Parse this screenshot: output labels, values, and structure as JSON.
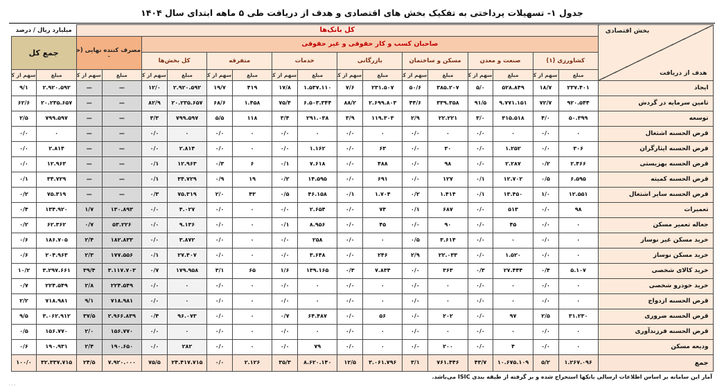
{
  "title": "جدول ۱-  تسهیلات پرداختی به تفکیک بخش های اقتصادی و هدف از دریافت طی ۵ ماهه ابتدای سال ۱۴۰۴",
  "unit_label": "میلیارد ریال / درصد",
  "header": {
    "all_banks": "کل بانک‌ها",
    "business_owners": "صاحبان کسب و کار حقوقی و غیر حقوقی",
    "final_consumer": "مصرف کننده نهایی (خانوار)",
    "final_consumer_note": "ـ",
    "grand_total": "جمع کل",
    "corner_column_axis": "بخش اقتصادی",
    "corner_row_axis": "هدف از دریافت",
    "amount": "مبلغ",
    "share": "سهم از کل",
    "sectors": [
      "کشاورزی (۱)",
      "صنعت و معدن",
      "مسکن و ساختمان",
      "بازرگانی",
      "خدمات",
      "متفرقه",
      "کل بخش‌ها"
    ]
  },
  "colors": {
    "accent_red": "#c00000",
    "band_peach": "#fbe5d6",
    "band_salmon": "#f8cbad",
    "band_orange": "#f4b183",
    "band_tan": "#d9c89a",
    "household_cell_gray": "#d9d9d9",
    "all_sectors_cell_gray": "#f2f2f2"
  },
  "rows": [
    {
      "label": "ایجاد",
      "c": [
        "۲۳۷.۴۰۱",
        "۱۸/۷",
        "۵۲۸.۸۴۹",
        "۵/۰",
        "۳۸۵.۲۰۷",
        "۵۰/۶",
        "۲۳۱.۵۰۷",
        "۷/۶",
        "۱.۵۳۷.۱۱۰",
        "۱۷/۸",
        "۴۱۹",
        "۱۹/۷",
        "۲.۹۲۰.۵۹۲",
        "۱۲/۰",
        "—",
        "—",
        "۲.۹۲۰.۵۹۲",
        "۹/۱"
      ]
    },
    {
      "label": "تامین سرمایه در گردش",
      "c": [
        "۹۲۰.۵۴۴",
        "۷۲/۷",
        "۹.۷۷۱.۱۵۱",
        "۹۱/۵",
        "۳۳۹.۳۵۸",
        "۴۴/۶",
        "۲.۶۹۹.۸۰۳",
        "۸۸/۲",
        "۶.۵۰۳.۳۴۴",
        "۷۵/۴",
        "۱.۴۵۸",
        "۶۸/۶",
        "۲۰.۲۳۵.۶۵۷",
        "۸۲/۹",
        "—",
        "—",
        "۲۰.۲۳۵.۶۵۷",
        "۶۲/۶"
      ]
    },
    {
      "label": "توسعه",
      "c": [
        "۵۰.۳۹۹",
        "۴/۰",
        "۳۱۵.۵۱۸",
        "۳/۰",
        "۲۲.۲۲۱",
        "۲/۹",
        "۱۱۹.۳۰۳",
        "۳/۹",
        "۲۹۱.۰۳۸",
        "۳/۴",
        "۱۱۸",
        "۵/۵",
        "۷۹۹.۵۹۷",
        "۳/۳",
        "—",
        "—",
        "۷۹۹.۵۹۷",
        "۲/۵"
      ]
    },
    {
      "label": "قرض الحسنه اشتغال",
      "c": [
        "۰",
        "۰/۰",
        "۰",
        "۰/۰",
        "۰",
        "۰/۰",
        "۰",
        "۰/۰",
        "۰",
        "۰/۰",
        "۰",
        "۰/۰",
        "۰",
        "۰/۰",
        "—",
        "—",
        "۰",
        "۰/۰"
      ]
    },
    {
      "label": "قرض الحسنه ایثارگران",
      "c": [
        "۳۰۶",
        "۰/۰",
        "۱.۲۵۲",
        "۰/۰",
        "۳۰",
        "۰/۰",
        "۶۳",
        "۰/۰",
        "۱.۱۶۲",
        "۰/۰",
        "۰",
        "۰/۰",
        "۲.۸۱۴",
        "۰/۰",
        "—",
        "—",
        "۲.۸۱۴",
        "۰/۰"
      ]
    },
    {
      "label": "قرض الحسنه بهزیستی",
      "c": [
        "۲.۴۶۶",
        "۰/۲",
        "۲.۲۸۷",
        "۰/۰",
        "۹۸",
        "۰/۰",
        "۴۸۸",
        "۰/۰",
        "۷.۶۱۸",
        "۰/۱",
        "۶",
        "۰/۳",
        "۱۲.۹۶۳",
        "۰/۱",
        "—",
        "—",
        "۱۲.۹۶۳",
        "۰/۰"
      ]
    },
    {
      "label": "قرض الحسنه کمیته",
      "c": [
        "۶.۵۹۵",
        "۰/۵",
        "۱۲.۷۰۲",
        "۰/۱",
        "۱۲۷",
        "۰/۰",
        "۶۹۱",
        "۰/۰",
        "۱۴.۵۹۵",
        "۰/۲",
        "۱۹",
        "۰/۹",
        "۳۴.۷۲۹",
        "۰/۱",
        "—",
        "—",
        "۳۴.۷۲۹",
        "۰/۱"
      ]
    },
    {
      "label": "قرض الحسنه سایر اشتغال",
      "c": [
        "۱۲.۵۵۱",
        "۱/۰",
        "۱۳.۴۵۰",
        "۰/۱",
        "۱.۴۱۴",
        "۰/۲",
        "۱.۷۰۴",
        "۰/۱",
        "۴۶.۱۵۸",
        "۰/۵",
        "۴۳",
        "۲/۰",
        "۷۵.۳۱۹",
        "۰/۳",
        "—",
        "—",
        "۷۵.۳۱۹",
        "۰/۲"
      ]
    },
    {
      "label": "تعمیرات",
      "c": [
        "۹۸",
        "۰/۰",
        "۵۱۳",
        "۰/۰",
        "۶۸۷",
        "۰/۱",
        "۷۴",
        "۰/۰",
        "۲.۶۵۴",
        "۰/۰",
        "۰",
        "۰/۰",
        "۴.۰۲۷",
        "۰/۰",
        "۱۳۰.۸۹۳",
        "۱/۷",
        "۱۳۴.۹۲۰",
        "۰/۴"
      ]
    },
    {
      "label": "جعاله تعمیر مسکن",
      "c": [
        "۰",
        "۰/۰",
        "۴۵",
        "۰/۰",
        "۹۰",
        "۰/۰",
        "۴۵",
        "۰/۰",
        "۸.۹۵۶",
        "۰/۱",
        "۰",
        "۰/۰",
        "۹.۱۳۶",
        "۰/۰",
        "۵۳.۲۲۶",
        "۰/۷",
        "۶۲.۳۶۲",
        "۰/۲"
      ]
    },
    {
      "label": "خرید مسکن غیر نوساز",
      "c": [
        "۰",
        "۰/۰",
        "۰",
        "۰/۰",
        "۳.۶۱۴",
        "۰/۵",
        "۰",
        "۰/۰",
        "۲۵۸",
        "۰/۰",
        "۰",
        "۰/۰",
        "۳.۸۷۲",
        "۰/۰",
        "۱۸۲.۸۳۳",
        "۲/۴",
        "۱۸۶.۷۰۵",
        "۰/۶"
      ]
    },
    {
      "label": "خرید مسکن نوساز",
      "c": [
        "۰",
        "۰/۰",
        "۱.۵۲۰",
        "۰/۰",
        "۲۲.۰۳۳",
        "۲/۹",
        "۲۴۶",
        "۰/۰",
        "۳.۶۴۸",
        "۰/۰",
        "۰",
        "۰/۰",
        "۲۷.۴۰۷",
        "۰/۱",
        "۱۷۷.۵۵۶",
        "۲/۳",
        "۲۰۴.۹۶۳",
        "۰/۶"
      ]
    },
    {
      "label": "خرید کالای شخصی",
      "c": [
        "۵.۱۰۷",
        "۰/۴",
        "۲۷.۴۴۴",
        "۰/۳",
        "۳۶۳",
        "۰/۰",
        "۷.۸۳۴",
        "۰/۳",
        "۱۳۹.۱۶۵",
        "۱/۶",
        "۶۵",
        "۳/۱",
        "۱۷۹.۹۵۸",
        "۰/۷",
        "۳.۱۱۷.۷۰۳",
        "۳۹/۴",
        "۳.۲۹۷.۶۶۱",
        "۱۰/۲"
      ]
    },
    {
      "label": "خرید خودرو شخصی",
      "c": [
        "۰",
        "۰/۰",
        "۰",
        "۰/۰",
        "۰",
        "۰/۰",
        "۰",
        "۰/۰",
        "۰",
        "۰/۰",
        "۰",
        "۰/۰",
        "۰",
        "۰/۰",
        "۲۲۴.۵۴۹",
        "۲/۸",
        "۲۲۴.۵۴۹",
        "۰/۷"
      ]
    },
    {
      "label": "قرض الحسنه ازدواج",
      "c": [
        "۰",
        "۰/۰",
        "۰",
        "۰/۰",
        "۰",
        "۰/۰",
        "۰",
        "۰/۰",
        "۰",
        "۰/۰",
        "۰",
        "۰/۰",
        "۰",
        "۰/۰",
        "۷۱۸.۹۸۱",
        "۹/۱",
        "۷۱۸.۹۸۱",
        "۲/۲"
      ]
    },
    {
      "label": "قرض الحسنه ضروری",
      "c": [
        "۳۱.۲۳۰",
        "۲/۵",
        "۹۷",
        "۰/۰",
        "۲۰۲",
        "۰/۰",
        "۵۶",
        "۰/۰",
        "۶۴.۴۸۷",
        "۰/۷",
        "۰",
        "۰/۰",
        "۹۶.۰۷۳",
        "۰/۴",
        "۲.۹۶۶.۸۳۹",
        "۳۷/۵",
        "۳.۰۶۲.۹۱۲",
        "۹/۵"
      ]
    },
    {
      "label": "قرض الحسنه فرزندآوری",
      "c": [
        "۰",
        "۰/۰",
        "۰",
        "۰/۰",
        "۰",
        "۰/۰",
        "۰",
        "۰/۰",
        "۰",
        "۰/۰",
        "۰",
        "۰/۰",
        "۰",
        "۰/۰",
        "۱۵۶.۷۷۰",
        "۲/۰",
        "۱۵۶.۷۷۰",
        "۰/۵"
      ]
    },
    {
      "label": "ودیعه مسکن",
      "c": [
        "۰",
        "۰/۰",
        "۴",
        "۰/۰",
        "۲۰۰",
        "۰/۰",
        "۰",
        "۰/۰",
        "۷۹",
        "۰/۰",
        "۰",
        "۰/۰",
        "۲۸۲",
        "۰/۰",
        "۱۹۰.۶۵۰",
        "۲/۴",
        "۱۹۰.۹۳۱",
        "۰/۶"
      ]
    }
  ],
  "total_row": {
    "label": "جمع",
    "c": [
      "۱.۲۶۷.۰۹۶",
      "۵/۲",
      "۱۰.۶۷۵.۱۰۹",
      "۴۳/۷",
      "۷۶۱.۴۴۶",
      "۳/۱",
      "۳.۰۶۱.۷۹۶",
      "۱۲/۵",
      "۸.۶۲۰.۱۴۰",
      "۳۵/۳",
      "۲.۱۲۶",
      "۰/۰",
      "۲۴.۴۱۷.۷۱۵",
      "۷۵/۵",
      "۷.۹۲۰.۰۰۰",
      "۲۴/۵",
      "۳۲.۳۳۷.۷۱۵",
      "۱۰۰/۰"
    ]
  },
  "footnote": "آمار این سامانه بر اساس اطلاعات ارسالی بانکها استخراج شده و بر گرفته از طبقه بندی ISIC می‌باشد.",
  "page_mark": "۰۰۰"
}
